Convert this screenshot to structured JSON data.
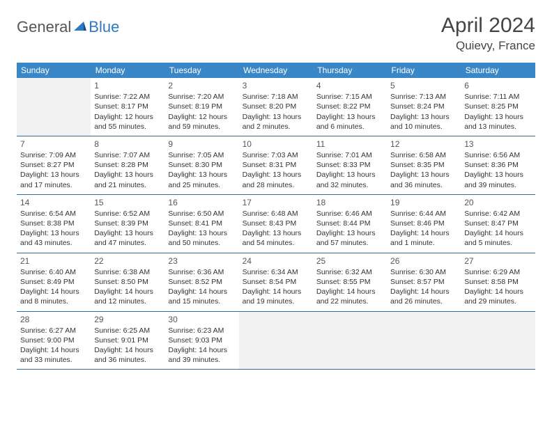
{
  "logo": {
    "text1": "General",
    "text2": "Blue"
  },
  "header": {
    "title": "April 2024",
    "location": "Quievy, France"
  },
  "colors": {
    "header_bg": "#3a87c8",
    "header_text": "#ffffff",
    "rule": "#2f6aa0",
    "empty_bg": "#f2f2f2",
    "logo_blue": "#2f7ac0",
    "logo_gray": "#555555"
  },
  "dayHeaders": [
    "Sunday",
    "Monday",
    "Tuesday",
    "Wednesday",
    "Thursday",
    "Friday",
    "Saturday"
  ],
  "weeks": [
    [
      null,
      {
        "n": "1",
        "sr": "Sunrise: 7:22 AM",
        "ss": "Sunset: 8:17 PM",
        "dl": "Daylight: 12 hours and 55 minutes."
      },
      {
        "n": "2",
        "sr": "Sunrise: 7:20 AM",
        "ss": "Sunset: 8:19 PM",
        "dl": "Daylight: 12 hours and 59 minutes."
      },
      {
        "n": "3",
        "sr": "Sunrise: 7:18 AM",
        "ss": "Sunset: 8:20 PM",
        "dl": "Daylight: 13 hours and 2 minutes."
      },
      {
        "n": "4",
        "sr": "Sunrise: 7:15 AM",
        "ss": "Sunset: 8:22 PM",
        "dl": "Daylight: 13 hours and 6 minutes."
      },
      {
        "n": "5",
        "sr": "Sunrise: 7:13 AM",
        "ss": "Sunset: 8:24 PM",
        "dl": "Daylight: 13 hours and 10 minutes."
      },
      {
        "n": "6",
        "sr": "Sunrise: 7:11 AM",
        "ss": "Sunset: 8:25 PM",
        "dl": "Daylight: 13 hours and 13 minutes."
      }
    ],
    [
      {
        "n": "7",
        "sr": "Sunrise: 7:09 AM",
        "ss": "Sunset: 8:27 PM",
        "dl": "Daylight: 13 hours and 17 minutes."
      },
      {
        "n": "8",
        "sr": "Sunrise: 7:07 AM",
        "ss": "Sunset: 8:28 PM",
        "dl": "Daylight: 13 hours and 21 minutes."
      },
      {
        "n": "9",
        "sr": "Sunrise: 7:05 AM",
        "ss": "Sunset: 8:30 PM",
        "dl": "Daylight: 13 hours and 25 minutes."
      },
      {
        "n": "10",
        "sr": "Sunrise: 7:03 AM",
        "ss": "Sunset: 8:31 PM",
        "dl": "Daylight: 13 hours and 28 minutes."
      },
      {
        "n": "11",
        "sr": "Sunrise: 7:01 AM",
        "ss": "Sunset: 8:33 PM",
        "dl": "Daylight: 13 hours and 32 minutes."
      },
      {
        "n": "12",
        "sr": "Sunrise: 6:58 AM",
        "ss": "Sunset: 8:35 PM",
        "dl": "Daylight: 13 hours and 36 minutes."
      },
      {
        "n": "13",
        "sr": "Sunrise: 6:56 AM",
        "ss": "Sunset: 8:36 PM",
        "dl": "Daylight: 13 hours and 39 minutes."
      }
    ],
    [
      {
        "n": "14",
        "sr": "Sunrise: 6:54 AM",
        "ss": "Sunset: 8:38 PM",
        "dl": "Daylight: 13 hours and 43 minutes."
      },
      {
        "n": "15",
        "sr": "Sunrise: 6:52 AM",
        "ss": "Sunset: 8:39 PM",
        "dl": "Daylight: 13 hours and 47 minutes."
      },
      {
        "n": "16",
        "sr": "Sunrise: 6:50 AM",
        "ss": "Sunset: 8:41 PM",
        "dl": "Daylight: 13 hours and 50 minutes."
      },
      {
        "n": "17",
        "sr": "Sunrise: 6:48 AM",
        "ss": "Sunset: 8:43 PM",
        "dl": "Daylight: 13 hours and 54 minutes."
      },
      {
        "n": "18",
        "sr": "Sunrise: 6:46 AM",
        "ss": "Sunset: 8:44 PM",
        "dl": "Daylight: 13 hours and 57 minutes."
      },
      {
        "n": "19",
        "sr": "Sunrise: 6:44 AM",
        "ss": "Sunset: 8:46 PM",
        "dl": "Daylight: 14 hours and 1 minute."
      },
      {
        "n": "20",
        "sr": "Sunrise: 6:42 AM",
        "ss": "Sunset: 8:47 PM",
        "dl": "Daylight: 14 hours and 5 minutes."
      }
    ],
    [
      {
        "n": "21",
        "sr": "Sunrise: 6:40 AM",
        "ss": "Sunset: 8:49 PM",
        "dl": "Daylight: 14 hours and 8 minutes."
      },
      {
        "n": "22",
        "sr": "Sunrise: 6:38 AM",
        "ss": "Sunset: 8:50 PM",
        "dl": "Daylight: 14 hours and 12 minutes."
      },
      {
        "n": "23",
        "sr": "Sunrise: 6:36 AM",
        "ss": "Sunset: 8:52 PM",
        "dl": "Daylight: 14 hours and 15 minutes."
      },
      {
        "n": "24",
        "sr": "Sunrise: 6:34 AM",
        "ss": "Sunset: 8:54 PM",
        "dl": "Daylight: 14 hours and 19 minutes."
      },
      {
        "n": "25",
        "sr": "Sunrise: 6:32 AM",
        "ss": "Sunset: 8:55 PM",
        "dl": "Daylight: 14 hours and 22 minutes."
      },
      {
        "n": "26",
        "sr": "Sunrise: 6:30 AM",
        "ss": "Sunset: 8:57 PM",
        "dl": "Daylight: 14 hours and 26 minutes."
      },
      {
        "n": "27",
        "sr": "Sunrise: 6:29 AM",
        "ss": "Sunset: 8:58 PM",
        "dl": "Daylight: 14 hours and 29 minutes."
      }
    ],
    [
      {
        "n": "28",
        "sr": "Sunrise: 6:27 AM",
        "ss": "Sunset: 9:00 PM",
        "dl": "Daylight: 14 hours and 33 minutes."
      },
      {
        "n": "29",
        "sr": "Sunrise: 6:25 AM",
        "ss": "Sunset: 9:01 PM",
        "dl": "Daylight: 14 hours and 36 minutes."
      },
      {
        "n": "30",
        "sr": "Sunrise: 6:23 AM",
        "ss": "Sunset: 9:03 PM",
        "dl": "Daylight: 14 hours and 39 minutes."
      },
      null,
      null,
      null,
      null
    ]
  ]
}
